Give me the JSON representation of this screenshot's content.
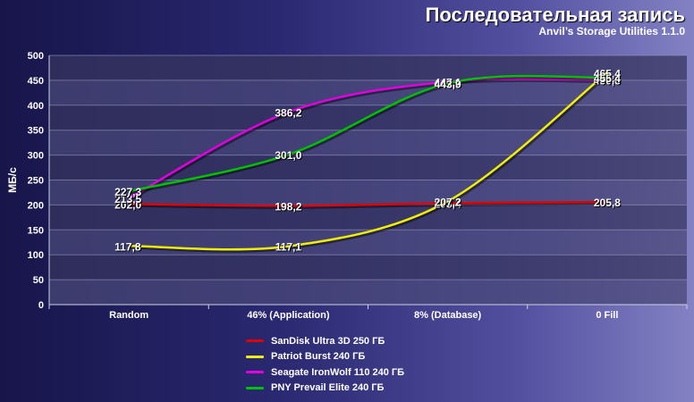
{
  "header": {
    "title": "Последовательная запись",
    "subtitle": "Anvil’s Storage Utilities 1.1.0"
  },
  "chart_data": {
    "type": "line",
    "ylabel": "МБ/с",
    "xlabel": "",
    "ylim": [
      0,
      500
    ],
    "yticks": [
      "0",
      "50",
      "100",
      "150",
      "200",
      "250",
      "300",
      "350",
      "400",
      "450",
      "500"
    ],
    "categories": [
      "Random",
      "46% (Application)",
      "8% (Database)",
      "0 Fill"
    ],
    "legend_position": "bottom",
    "grid": true,
    "series": [
      {
        "name": "SanDisk Ultra 3D 250 ГБ",
        "color": "#e00000",
        "values": [
          202.0,
          198.2,
          203.4,
          205.8
        ],
        "labels": [
          "202,0",
          "198,2",
          "203,4",
          "205,8"
        ]
      },
      {
        "name": "Patriot Burst 240 ГБ",
        "color": "#f0f000",
        "values": [
          117.8,
          117.1,
          207.2,
          465.4
        ],
        "labels": [
          "117,8",
          "117,1",
          "207,2",
          "465,4"
        ]
      },
      {
        "name": "Seagate IronWolf 110 240 ГБ",
        "color": "#e000e0",
        "values": [
          213.5,
          386.2,
          447.1,
          450.8
        ],
        "labels": [
          "213,5",
          "386,2",
          "447,1",
          "450,8"
        ]
      },
      {
        "name": "PNY Prevail Elite 240 ГБ",
        "color": "#00c000",
        "values": [
          227.3,
          301.0,
          443.9,
          455.4
        ],
        "labels": [
          "227,3",
          "301,0",
          "443,9",
          "455,4"
        ]
      }
    ]
  }
}
